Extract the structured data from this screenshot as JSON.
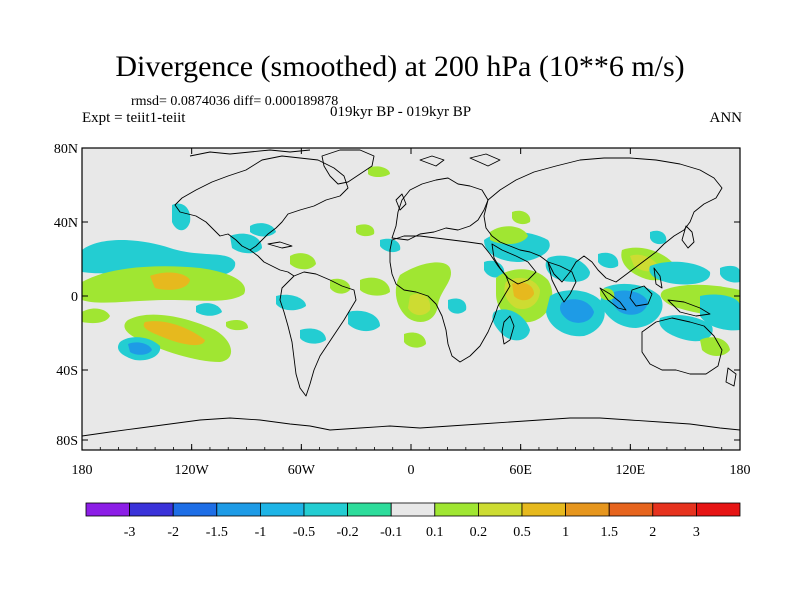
{
  "title": "Divergence (smoothed) at 200 hPa (10**6 m/s)",
  "stats": "rmsd= 0.0874036 diff= 0.000189878",
  "expt": "Expt = teiit1-teiit",
  "period": "019kyr BP - 019kyr BP",
  "season": "ANN",
  "map": {
    "lat_ticks": [
      "80N",
      "40N",
      "0",
      "40S",
      "80S"
    ],
    "lon_ticks": [
      "180",
      "120W",
      "60W",
      "0",
      "60E",
      "120E",
      "180"
    ],
    "background_color": "#e8e8e8"
  },
  "colorbar": {
    "labels": [
      "-3",
      "-2",
      "-1.5",
      "-1",
      "-0.5",
      "-0.2",
      "-0.1",
      "0.1",
      "0.2",
      "0.5",
      "1",
      "1.5",
      "2",
      "3"
    ],
    "colors": [
      "#8c1ee6",
      "#3a32d9",
      "#1e6ee6",
      "#1e9be6",
      "#1eb4e6",
      "#23cdd2",
      "#2ddc9b",
      "#e8e8e8",
      "#a0e632",
      "#cddc32",
      "#e6b91e",
      "#e6961e",
      "#e6641e",
      "#e6321e",
      "#e61414"
    ]
  },
  "regions": [
    {
      "name": "tropical-north-pacific-band",
      "value": 0.2
    },
    {
      "name": "central-pacific-positive",
      "value": 0.5
    },
    {
      "name": "south-pacific-positive",
      "value": 0.5
    },
    {
      "name": "atlantic-africa-positive",
      "value": 0.5
    },
    {
      "name": "arabian-sea-positive",
      "value": 1.0
    },
    {
      "name": "indian-ocean-negative",
      "value": -0.5
    },
    {
      "name": "maritime-continent-negative",
      "value": -0.5
    },
    {
      "name": "west-pacific-positive",
      "value": 0.5
    }
  ]
}
